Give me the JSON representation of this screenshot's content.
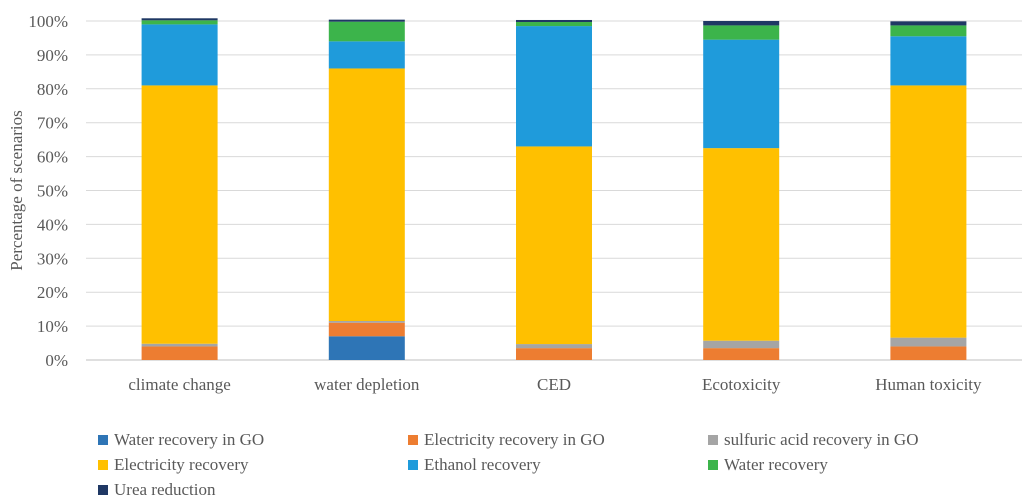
{
  "chart_data": {
    "type": "bar",
    "stacked": true,
    "ylabel": "Percentage of scenarios",
    "xlabel": "",
    "ylim": [
      0,
      100
    ],
    "yticks": [
      "0%",
      "10%",
      "20%",
      "30%",
      "40%",
      "50%",
      "60%",
      "70%",
      "80%",
      "90%",
      "100%"
    ],
    "grid": true,
    "legend_position": "bottom",
    "categories": [
      "climate change",
      "water depletion",
      "CED",
      "Ecotoxicity",
      "Human toxicity"
    ],
    "series": [
      {
        "name": "Water recovery in GO",
        "color": "#2E75B6",
        "values": [
          0,
          7,
          0,
          0,
          0
        ]
      },
      {
        "name": "Electricity recovery in GO",
        "color": "#ED7D31",
        "values": [
          4,
          4,
          3.5,
          3.5,
          4
        ]
      },
      {
        "name": "sulfuric acid recovery in GO",
        "color": "#A5A5A5",
        "values": [
          0.8,
          0.5,
          1.2,
          2.2,
          2.6
        ]
      },
      {
        "name": "Electricity recovery",
        "color": "#FFC000",
        "values": [
          76.2,
          74.5,
          58.3,
          56.8,
          74.4
        ]
      },
      {
        "name": "Ethanol recovery",
        "color": "#1F9BDB",
        "values": [
          18,
          8,
          35.5,
          32,
          14.5
        ]
      },
      {
        "name": "Water recovery",
        "color": "#3CB44B",
        "values": [
          1.2,
          5.8,
          1.2,
          4.2,
          3.2
        ]
      },
      {
        "name": "Urea reduction",
        "color": "#1F3864",
        "values": [
          0.6,
          0.6,
          0.6,
          1.3,
          1.2
        ]
      }
    ]
  }
}
